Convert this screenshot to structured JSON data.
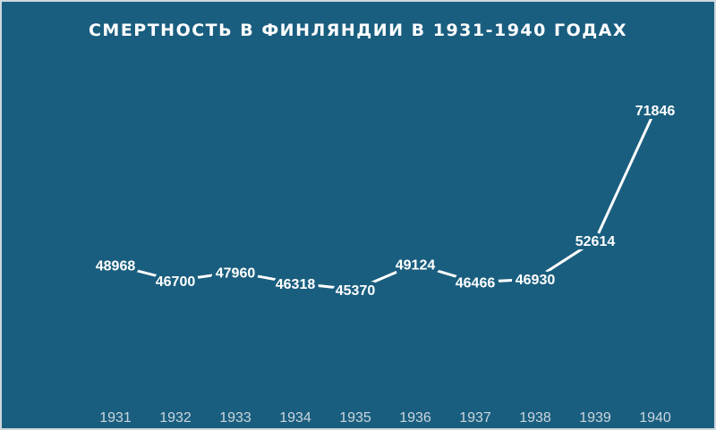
{
  "chart_data": {
    "type": "line",
    "title": "СМЕРТНОСТЬ В ФИНЛЯНДИИ В 1931-1940 ГОДАХ",
    "categories": [
      "1931",
      "1932",
      "1933",
      "1934",
      "1935",
      "1936",
      "1937",
      "1938",
      "1939",
      "1940"
    ],
    "values": [
      48968,
      46700,
      47960,
      46318,
      45370,
      49124,
      46466,
      46930,
      52614,
      71846
    ],
    "color": "#ffffff"
  }
}
